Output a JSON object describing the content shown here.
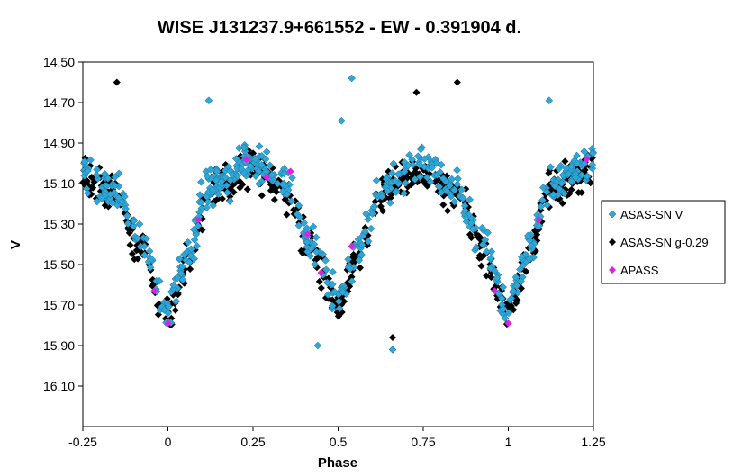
{
  "chart_data": {
    "type": "scatter",
    "title": "WISE J131237.9+661552  - EW - 0.391904  d.",
    "xlabel": "Phase",
    "ylabel": "V",
    "xlim": [
      -0.25,
      1.25
    ],
    "ylim": [
      14.5,
      16.3
    ],
    "y_inverted": true,
    "x_ticks": [
      "-0.25",
      "0",
      "0.25",
      "0.5",
      "0.75",
      "1",
      "1.25"
    ],
    "y_ticks": [
      "14.50",
      "14.70",
      "14.90",
      "15.10",
      "15.30",
      "15.50",
      "15.70",
      "15.90",
      "16.10"
    ],
    "grid": false,
    "legend_position": "right",
    "series": [
      {
        "name": "ASAS-SN V",
        "color": "#2ea6d8",
        "marker": "diamond"
      },
      {
        "name": "ASAS-SN g-0.29",
        "color": "#000000",
        "marker": "diamond"
      },
      {
        "name": "APASS",
        "color": "#e020e0",
        "marker": "diamond",
        "points": [
          {
            "x": -0.04,
            "y": 15.63
          },
          {
            "x": 0.0,
            "y": 15.79
          },
          {
            "x": 0.09,
            "y": 15.28
          },
          {
            "x": 0.23,
            "y": 14.98
          },
          {
            "x": 0.29,
            "y": 15.07
          },
          {
            "x": 0.36,
            "y": 15.04
          },
          {
            "x": 0.41,
            "y": 15.35
          },
          {
            "x": 0.45,
            "y": 15.54
          },
          {
            "x": 0.54,
            "y": 15.41
          },
          {
            "x": 0.96,
            "y": 15.63
          },
          {
            "x": 1.0,
            "y": 15.79
          },
          {
            "x": 1.09,
            "y": 15.28
          },
          {
            "x": 1.23,
            "y": 14.98
          }
        ]
      }
    ],
    "light_curve_model": {
      "description_units": "magnitude vs phase",
      "anchors": [
        {
          "x": -0.25,
          "y": 15.05
        },
        {
          "x": -0.15,
          "y": 15.15
        },
        {
          "x": -0.08,
          "y": 15.4
        },
        {
          "x": 0.0,
          "y": 15.72
        },
        {
          "x": 0.06,
          "y": 15.45
        },
        {
          "x": 0.12,
          "y": 15.12
        },
        {
          "x": 0.25,
          "y": 15.0
        },
        {
          "x": 0.35,
          "y": 15.12
        },
        {
          "x": 0.42,
          "y": 15.4
        },
        {
          "x": 0.5,
          "y": 15.68
        },
        {
          "x": 0.56,
          "y": 15.42
        },
        {
          "x": 0.63,
          "y": 15.12
        },
        {
          "x": 0.75,
          "y": 15.02
        },
        {
          "x": 0.85,
          "y": 15.15
        },
        {
          "x": 0.92,
          "y": 15.4
        },
        {
          "x": 1.0,
          "y": 15.72
        },
        {
          "x": 1.06,
          "y": 15.45
        },
        {
          "x": 1.12,
          "y": 15.12
        },
        {
          "x": 1.25,
          "y": 15.0
        }
      ],
      "scatter_sigma": 0.09
    }
  }
}
